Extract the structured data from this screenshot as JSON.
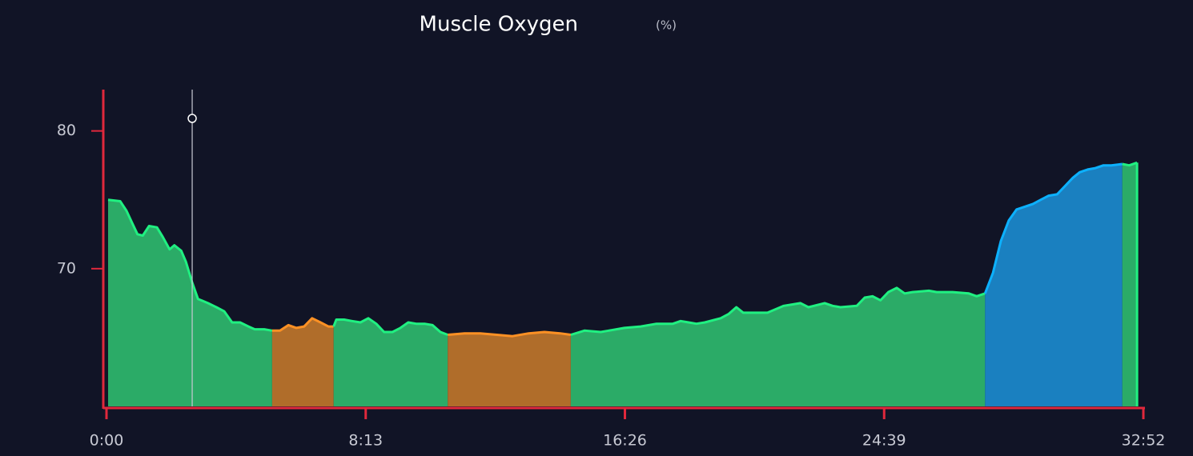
{
  "chart_data": {
    "type": "area",
    "title": "Muscle Oxygen",
    "unit": "(%)",
    "x": [
      3,
      26,
      38,
      49,
      59,
      69,
      81,
      96,
      107,
      120,
      129,
      142,
      151,
      163,
      174,
      193,
      209,
      224,
      239,
      254,
      270,
      282,
      300,
      315,
      330,
      346,
      361,
      376,
      391,
      407,
      422,
      432,
      437,
      452,
      467,
      483,
      498,
      513,
      528,
      544,
      559,
      574,
      589,
      605,
      620,
      635,
      649,
      681,
      711,
      742,
      772,
      803,
      833,
      863,
      883,
      909,
      940,
      955,
      985,
      1016,
      1046,
      1077,
      1092,
      1107,
      1122,
      1138,
      1168,
      1183,
      1198,
      1211,
      1242,
      1257,
      1288,
      1320,
      1335,
      1366,
      1381,
      1396,
      1427,
      1442,
      1457,
      1472,
      1487,
      1503,
      1518,
      1533,
      1564,
      1579,
      1609,
      1640,
      1655,
      1671,
      1686,
      1701,
      1716,
      1731,
      1747,
      1762,
      1777,
      1792,
      1808,
      1823,
      1838,
      1851,
      1866,
      1881,
      1896,
      1911,
      1932,
      1945,
      1960
    ],
    "values": [
      75.0,
      74.9,
      74.2,
      73.3,
      72.5,
      72.4,
      73.1,
      73.0,
      72.3,
      71.4,
      71.7,
      71.3,
      70.5,
      69.0,
      67.8,
      67.5,
      67.2,
      66.9,
      66.1,
      66.1,
      65.8,
      65.6,
      65.6,
      65.5,
      65.5,
      65.9,
      65.7,
      65.8,
      66.4,
      66.1,
      65.8,
      65.8,
      66.3,
      66.3,
      66.2,
      66.1,
      66.4,
      66.0,
      65.4,
      65.4,
      65.7,
      66.1,
      66.0,
      66.0,
      65.9,
      65.4,
      65.2,
      65.3,
      65.3,
      65.2,
      65.1,
      65.3,
      65.4,
      65.3,
      65.2,
      65.5,
      65.4,
      65.5,
      65.7,
      65.8,
      66.0,
      66.0,
      66.2,
      66.1,
      66.0,
      66.1,
      66.4,
      66.7,
      67.2,
      66.8,
      66.8,
      66.8,
      67.3,
      67.5,
      67.2,
      67.5,
      67.3,
      67.2,
      67.3,
      67.9,
      68.0,
      67.7,
      68.3,
      68.6,
      68.2,
      68.3,
      68.4,
      68.3,
      68.3,
      68.2,
      68.0,
      68.2,
      69.7,
      72.0,
      73.5,
      74.3,
      74.5,
      74.7,
      75.0,
      75.3,
      75.4,
      76.0,
      76.6,
      77.0,
      77.2,
      77.3,
      77.5,
      77.5,
      77.6,
      77.5,
      77.7
    ],
    "colors": [
      "#2bab67",
      "#2bab67",
      "#2bab67",
      "#2bab67",
      "#2bab67",
      "#2bab67",
      "#2bab67",
      "#2bab67",
      "#2bab67",
      "#2bab67",
      "#2bab67",
      "#2bab67",
      "#2bab67",
      "#2bab67",
      "#2bab67",
      "#2bab67",
      "#2bab67",
      "#2bab67",
      "#2bab67",
      "#2bab67",
      "#2bab67",
      "#2bab67",
      "#2bab67",
      "#b06d2a",
      "#b06d2a",
      "#b06d2a",
      "#b06d2a",
      "#b06d2a",
      "#b06d2a",
      "#b06d2a",
      "#b06d2a",
      "#2bab67",
      "#2bab67",
      "#2bab67",
      "#2bab67",
      "#2bab67",
      "#2bab67",
      "#2bab67",
      "#2bab67",
      "#2bab67",
      "#2bab67",
      "#2bab67",
      "#2bab67",
      "#2bab67",
      "#2bab67",
      "#2bab67",
      "#b06d2a",
      "#b06d2a",
      "#b06d2a",
      "#b06d2a",
      "#b06d2a",
      "#b06d2a",
      "#b06d2a",
      "#b06d2a",
      "#2bab67",
      "#2bab67",
      "#2bab67",
      "#2bab67",
      "#2bab67",
      "#2bab67",
      "#2bab67",
      "#2bab67",
      "#2bab67",
      "#2bab67",
      "#2bab67",
      "#2bab67",
      "#2bab67",
      "#2bab67",
      "#2bab67",
      "#2bab67",
      "#2bab67",
      "#2bab67",
      "#2bab67",
      "#2bab67",
      "#2bab67",
      "#2bab67",
      "#2bab67",
      "#2bab67",
      "#2bab67",
      "#2bab67",
      "#2bab67",
      "#2bab67",
      "#2bab67",
      "#2bab67",
      "#2bab67",
      "#2bab67",
      "#2bab67",
      "#2bab67",
      "#2bab67",
      "#2bab67",
      "#2bab67",
      "#1a80c0",
      "#1a80c0",
      "#1a80c0",
      "#1a80c0",
      "#1a80c0",
      "#1a80c0",
      "#1a80c0",
      "#1a80c0",
      "#1a80c0",
      "#1a80c0",
      "#1a80c0",
      "#1a80c0",
      "#1a80c0",
      "#1a80c0",
      "#1a80c0",
      "#1a80c0",
      "#1a80c0",
      "#2bab67",
      "#2bab67",
      "#2bab67"
    ],
    "xlim": [
      0,
      1972
    ],
    "xticks": [
      {
        "value": 0,
        "label": "0:00"
      },
      {
        "value": 493,
        "label": "8:13"
      },
      {
        "value": 986,
        "label": "16:26"
      },
      {
        "value": 1479,
        "label": "24:39"
      },
      {
        "value": 1972,
        "label": "32:52"
      }
    ],
    "ylim": [
      60,
      83
    ],
    "yticks": [
      70,
      80
    ],
    "axis_color": "#e0283c",
    "cursor_x": 163
  }
}
